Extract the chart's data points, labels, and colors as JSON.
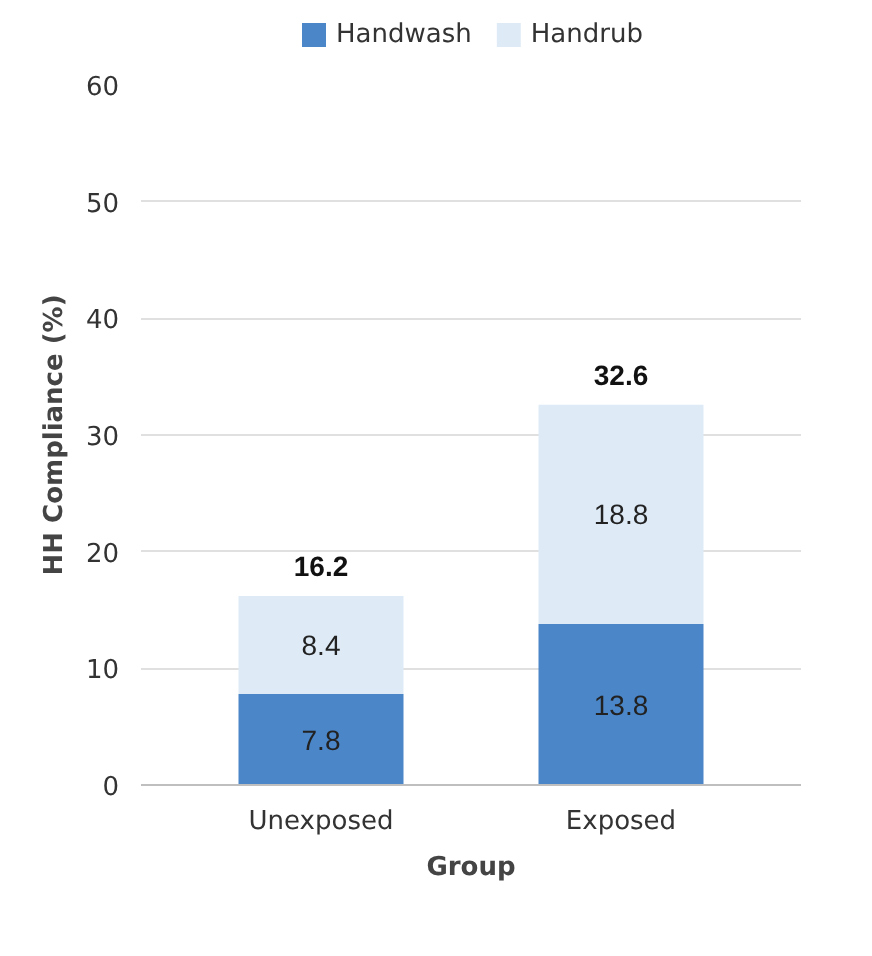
{
  "chart_data": {
    "type": "bar",
    "stacked": true,
    "xlabel": "Group",
    "ylabel": "HH Compliance (%)",
    "categories": [
      "Unexposed",
      "Exposed"
    ],
    "series": [
      {
        "name": "Handwash",
        "color": "#4a86c8",
        "values": [
          7.8,
          13.8
        ]
      },
      {
        "name": "Handrub",
        "color": "#deebf7",
        "values": [
          8.4,
          18.8
        ]
      }
    ],
    "totals": [
      "16.2",
      "32.6"
    ],
    "data_labels": true,
    "ylim": [
      0,
      60
    ],
    "yticks": [
      0,
      10,
      20,
      30,
      40,
      50,
      60
    ],
    "grid": "y",
    "legend": "top"
  }
}
